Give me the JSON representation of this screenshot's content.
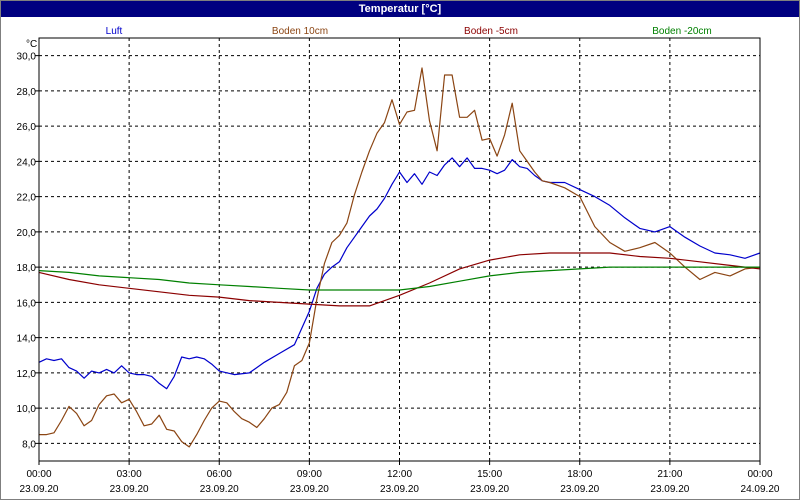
{
  "chart_data": {
    "type": "line",
    "title": "Temperatur [°C]",
    "ylabel": "°C",
    "ylim": [
      7.0,
      31.0
    ],
    "yticks": [
      8,
      10,
      12,
      14,
      16,
      18,
      20,
      22,
      24,
      26,
      28,
      30
    ],
    "ytick_labels": [
      "8,0",
      "10,0",
      "12,0",
      "14,0",
      "16,0",
      "18,0",
      "20,0",
      "22,0",
      "24,0",
      "26,0",
      "28,0",
      "30,0"
    ],
    "xlim": [
      0,
      24
    ],
    "xticks": [
      {
        "h": 0,
        "time": "00:00",
        "date": "23.09.20"
      },
      {
        "h": 3,
        "time": "03:00",
        "date": "23.09.20"
      },
      {
        "h": 6,
        "time": "06:00",
        "date": "23.09.20"
      },
      {
        "h": 9,
        "time": "09:00",
        "date": "23.09.20"
      },
      {
        "h": 12,
        "time": "12:00",
        "date": "23.09.20"
      },
      {
        "h": 15,
        "time": "15:00",
        "date": "23.09.20"
      },
      {
        "h": 18,
        "time": "18:00",
        "date": "23.09.20"
      },
      {
        "h": 21,
        "time": "21:00",
        "date": "23.09.20"
      },
      {
        "h": 24,
        "time": "00:00",
        "date": "24.09.20"
      }
    ],
    "grid": true,
    "legend_position": "top",
    "series": [
      {
        "name": "Luft",
        "color": "#0000cc",
        "points": [
          [
            0,
            12.6
          ],
          [
            0.25,
            12.8
          ],
          [
            0.5,
            12.7
          ],
          [
            0.75,
            12.8
          ],
          [
            1,
            12.3
          ],
          [
            1.25,
            12.1
          ],
          [
            1.5,
            11.7
          ],
          [
            1.75,
            12.1
          ],
          [
            2,
            12.0
          ],
          [
            2.25,
            12.2
          ],
          [
            2.5,
            12.0
          ],
          [
            2.75,
            12.4
          ],
          [
            3,
            12.0
          ],
          [
            3.25,
            11.9
          ],
          [
            3.5,
            11.9
          ],
          [
            3.75,
            11.8
          ],
          [
            4,
            11.4
          ],
          [
            4.25,
            11.1
          ],
          [
            4.5,
            11.8
          ],
          [
            4.75,
            12.9
          ],
          [
            5,
            12.8
          ],
          [
            5.25,
            12.9
          ],
          [
            5.5,
            12.8
          ],
          [
            5.75,
            12.5
          ],
          [
            6,
            12.1
          ],
          [
            6.5,
            11.9
          ],
          [
            7,
            12.0
          ],
          [
            7.5,
            12.6
          ],
          [
            8,
            13.1
          ],
          [
            8.5,
            13.6
          ],
          [
            9,
            15.5
          ],
          [
            9.25,
            16.8
          ],
          [
            9.5,
            17.6
          ],
          [
            9.75,
            18.0
          ],
          [
            10,
            18.3
          ],
          [
            10.25,
            19.1
          ],
          [
            10.5,
            19.7
          ],
          [
            10.75,
            20.3
          ],
          [
            11,
            20.9
          ],
          [
            11.25,
            21.3
          ],
          [
            11.5,
            21.9
          ],
          [
            11.75,
            22.7
          ],
          [
            12,
            23.4
          ],
          [
            12.25,
            22.8
          ],
          [
            12.5,
            23.3
          ],
          [
            12.75,
            22.7
          ],
          [
            13,
            23.4
          ],
          [
            13.25,
            23.2
          ],
          [
            13.5,
            23.8
          ],
          [
            13.75,
            24.2
          ],
          [
            14,
            23.7
          ],
          [
            14.25,
            24.2
          ],
          [
            14.5,
            23.6
          ],
          [
            14.75,
            23.6
          ],
          [
            15,
            23.5
          ],
          [
            15.25,
            23.3
          ],
          [
            15.5,
            23.5
          ],
          [
            15.75,
            24.1
          ],
          [
            16,
            23.7
          ],
          [
            16.25,
            23.6
          ],
          [
            16.5,
            23.2
          ],
          [
            16.75,
            22.9
          ],
          [
            17,
            22.8
          ],
          [
            17.5,
            22.8
          ],
          [
            18,
            22.4
          ],
          [
            18.5,
            22.0
          ],
          [
            19,
            21.5
          ],
          [
            19.5,
            20.8
          ],
          [
            20,
            20.2
          ],
          [
            20.5,
            20.0
          ],
          [
            21,
            20.3
          ],
          [
            21.5,
            19.7
          ],
          [
            22,
            19.2
          ],
          [
            22.5,
            18.8
          ],
          [
            23,
            18.7
          ],
          [
            23.5,
            18.5
          ],
          [
            24,
            18.8
          ]
        ]
      },
      {
        "name": "Boden 10cm",
        "color": "#8b4513",
        "points": [
          [
            0,
            8.5
          ],
          [
            0.25,
            8.5
          ],
          [
            0.5,
            8.6
          ],
          [
            0.75,
            9.3
          ],
          [
            1,
            10.1
          ],
          [
            1.25,
            9.7
          ],
          [
            1.5,
            9.0
          ],
          [
            1.75,
            9.3
          ],
          [
            2,
            10.2
          ],
          [
            2.25,
            10.7
          ],
          [
            2.5,
            10.8
          ],
          [
            2.75,
            10.3
          ],
          [
            3,
            10.5
          ],
          [
            3.25,
            9.8
          ],
          [
            3.5,
            9.0
          ],
          [
            3.75,
            9.1
          ],
          [
            4,
            9.6
          ],
          [
            4.25,
            8.8
          ],
          [
            4.5,
            8.7
          ],
          [
            4.75,
            8.1
          ],
          [
            5,
            7.8
          ],
          [
            5.25,
            8.5
          ],
          [
            5.5,
            9.3
          ],
          [
            5.75,
            10.0
          ],
          [
            6,
            10.4
          ],
          [
            6.25,
            10.3
          ],
          [
            6.5,
            9.8
          ],
          [
            6.75,
            9.4
          ],
          [
            7,
            9.2
          ],
          [
            7.25,
            8.9
          ],
          [
            7.5,
            9.4
          ],
          [
            7.75,
            10.0
          ],
          [
            8,
            10.2
          ],
          [
            8.25,
            10.9
          ],
          [
            8.5,
            12.4
          ],
          [
            8.75,
            12.7
          ],
          [
            9,
            13.7
          ],
          [
            9.25,
            16.2
          ],
          [
            9.5,
            18.2
          ],
          [
            9.75,
            19.4
          ],
          [
            10,
            19.8
          ],
          [
            10.25,
            20.5
          ],
          [
            10.5,
            22.1
          ],
          [
            10.75,
            23.4
          ],
          [
            11,
            24.6
          ],
          [
            11.25,
            25.6
          ],
          [
            11.5,
            26.2
          ],
          [
            11.75,
            27.5
          ],
          [
            12,
            26.1
          ],
          [
            12.25,
            26.8
          ],
          [
            12.5,
            26.9
          ],
          [
            12.75,
            29.3
          ],
          [
            13,
            26.3
          ],
          [
            13.25,
            24.6
          ],
          [
            13.5,
            28.9
          ],
          [
            13.75,
            28.9
          ],
          [
            14,
            26.5
          ],
          [
            14.25,
            26.5
          ],
          [
            14.5,
            26.9
          ],
          [
            14.75,
            25.2
          ],
          [
            15,
            25.3
          ],
          [
            15.25,
            24.3
          ],
          [
            15.5,
            25.5
          ],
          [
            15.75,
            27.3
          ],
          [
            16,
            24.6
          ],
          [
            16.25,
            24.0
          ],
          [
            16.5,
            23.4
          ],
          [
            16.75,
            22.9
          ],
          [
            17,
            22.8
          ],
          [
            17.5,
            22.5
          ],
          [
            18,
            22.0
          ],
          [
            18.5,
            20.3
          ],
          [
            19,
            19.4
          ],
          [
            19.5,
            18.9
          ],
          [
            20,
            19.1
          ],
          [
            20.5,
            19.4
          ],
          [
            21,
            18.8
          ],
          [
            21.5,
            18.0
          ],
          [
            22,
            17.3
          ],
          [
            22.5,
            17.7
          ],
          [
            23,
            17.5
          ],
          [
            23.5,
            17.9
          ],
          [
            24,
            18.0
          ]
        ]
      },
      {
        "name": "Boden -5cm",
        "color": "#8b0000",
        "points": [
          [
            0,
            17.7
          ],
          [
            1,
            17.3
          ],
          [
            2,
            17.0
          ],
          [
            3,
            16.8
          ],
          [
            4,
            16.6
          ],
          [
            5,
            16.4
          ],
          [
            6,
            16.3
          ],
          [
            7,
            16.1
          ],
          [
            8,
            16.0
          ],
          [
            9,
            15.9
          ],
          [
            10,
            15.8
          ],
          [
            11,
            15.8
          ],
          [
            12,
            16.4
          ],
          [
            13,
            17.1
          ],
          [
            14,
            17.9
          ],
          [
            15,
            18.4
          ],
          [
            16,
            18.7
          ],
          [
            17,
            18.8
          ],
          [
            18,
            18.8
          ],
          [
            19,
            18.8
          ],
          [
            20,
            18.6
          ],
          [
            21,
            18.5
          ],
          [
            22,
            18.3
          ],
          [
            23,
            18.1
          ],
          [
            24,
            17.9
          ]
        ]
      },
      {
        "name": "Boden -20cm",
        "color": "#008000",
        "points": [
          [
            0,
            17.8
          ],
          [
            1,
            17.7
          ],
          [
            2,
            17.5
          ],
          [
            3,
            17.4
          ],
          [
            4,
            17.3
          ],
          [
            5,
            17.1
          ],
          [
            6,
            17.0
          ],
          [
            7,
            16.9
          ],
          [
            8,
            16.8
          ],
          [
            9,
            16.7
          ],
          [
            10,
            16.7
          ],
          [
            11,
            16.7
          ],
          [
            12,
            16.7
          ],
          [
            13,
            16.9
          ],
          [
            14,
            17.2
          ],
          [
            15,
            17.5
          ],
          [
            16,
            17.7
          ],
          [
            17,
            17.8
          ],
          [
            18,
            17.9
          ],
          [
            19,
            18.0
          ],
          [
            20,
            18.0
          ],
          [
            21,
            18.0
          ],
          [
            22,
            18.0
          ],
          [
            23,
            18.0
          ],
          [
            24,
            18.0
          ]
        ]
      }
    ]
  }
}
